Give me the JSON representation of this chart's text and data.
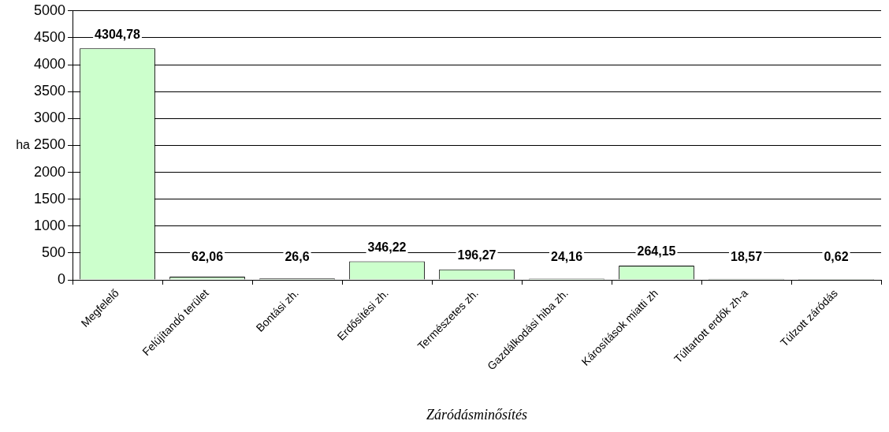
{
  "chart_data": {
    "type": "bar",
    "xlabel": "Záródásminősítés",
    "ylabel": "ha",
    "categories": [
      "Megfelelő",
      "Felújítandó terület",
      "Bontási zh.",
      "Erdősítési zh.",
      "Természetes zh.",
      "Gazdálkodási hiba zh.",
      "Károsítások miatti zh",
      "Túltartott erdők zh-a",
      "Túlzott záródás"
    ],
    "values": [
      4304.78,
      62.06,
      26.6,
      346.22,
      196.27,
      24.16,
      264.15,
      18.57,
      0.62
    ],
    "value_labels": [
      "4304,78",
      "62,06",
      "26,6",
      "346,22",
      "196,27",
      "24,16",
      "264,15",
      "18,57",
      "0,62"
    ],
    "color": "#ccffcc",
    "ylim": [
      0,
      5000
    ],
    "yticks": [
      0,
      500,
      1000,
      1500,
      2000,
      2500,
      3000,
      3500,
      4000,
      4500,
      5000
    ],
    "grid": "y",
    "legend": false
  }
}
